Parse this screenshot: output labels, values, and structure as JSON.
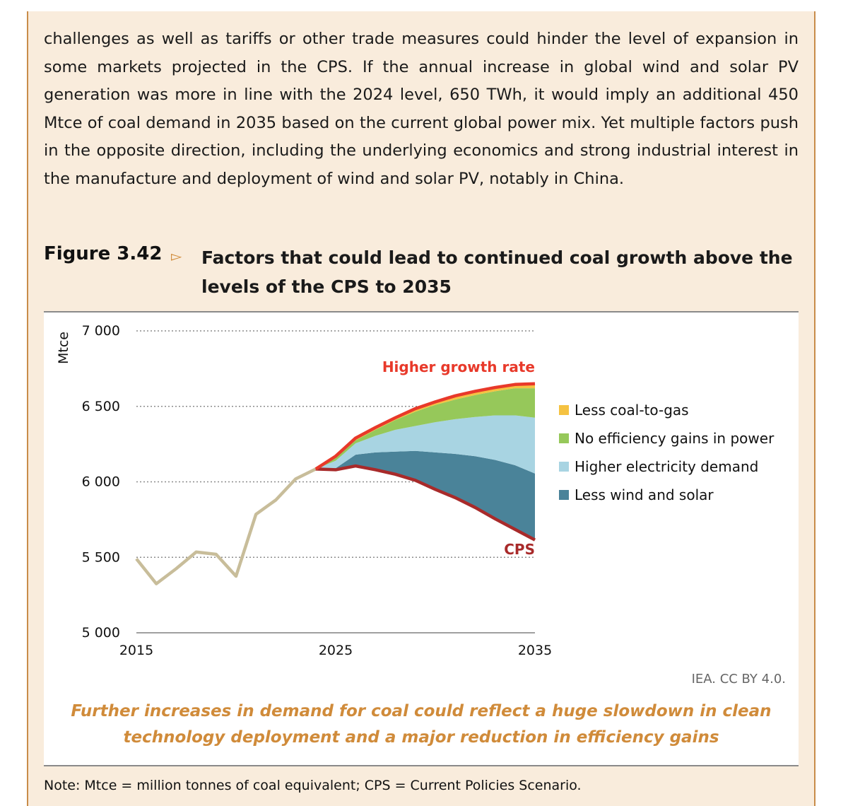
{
  "body_text": "challenges as well as tariffs or other trade measures could hinder the level of expansion in some markets projected in the CPS. If the annual increase in global wind and solar PV generation was more in line with the 2024 level, 650 TWh, it would imply an additional 450 Mtce of coal demand in 2035 based on the current global power mix. Yet multiple factors push in the opposite direction, including the underlying economics and strong industrial interest in the manufacture and deployment of wind and solar PV, notably in China.",
  "figure": {
    "number": "Figure 3.42",
    "arrow": "▻",
    "title": "Factors that could lead to continued coal growth above the levels of the CPS to 2035",
    "credit": "IEA. CC BY 4.0.",
    "caption": "Further increases in demand for coal could reflect a huge slowdown in clean technology deployment and a major reduction in efficiency gains",
    "note": "Note: Mtce = million tonnes of coal equivalent; CPS = Current Policies Scenario."
  },
  "colors": {
    "historical": "#c8bd9a",
    "cps": "#a82a2a",
    "higher_growth": "#e8392a",
    "less_wind_solar": "#4a8399",
    "higher_electricity": "#a8d4e2",
    "no_efficiency": "#96c85a",
    "less_coal_to_gas": "#f5c242",
    "gridline": "#8c8c8c",
    "axis": "#808080"
  },
  "chart_data": {
    "type": "area",
    "ylabel": "Mtce",
    "ylim": [
      5000,
      7000
    ],
    "yticks": [
      5000,
      5500,
      6000,
      6500,
      7000
    ],
    "ytick_labels": [
      "5 000",
      "5 500",
      "6 000",
      "6 500",
      "7 000"
    ],
    "xlim": [
      2015,
      2035
    ],
    "xticks": [
      2015,
      2025,
      2035
    ],
    "xtick_labels": [
      "2015",
      "2025",
      "2035"
    ],
    "grid": "horizontal dotted",
    "legend_position": "right",
    "historical": {
      "x": [
        2015,
        2016,
        2017,
        2018,
        2019,
        2020,
        2021,
        2022,
        2023,
        2024
      ],
      "y": [
        5490,
        5325,
        5425,
        5535,
        5520,
        5375,
        5785,
        5880,
        6020,
        6085
      ]
    },
    "projection_x": [
      2024,
      2025,
      2026,
      2027,
      2028,
      2029,
      2030,
      2031,
      2032,
      2033,
      2034,
      2035
    ],
    "cps": [
      6085,
      6080,
      6105,
      6080,
      6050,
      6010,
      5950,
      5895,
      5830,
      5755,
      5685,
      5615
    ],
    "stack_series": [
      {
        "name": "Less wind and solar",
        "key": "less_wind_solar",
        "cumulative": [
          6085,
          6090,
          6180,
          6195,
          6200,
          6205,
          6195,
          6185,
          6170,
          6145,
          6110,
          6055
        ]
      },
      {
        "name": "Higher electricity demand",
        "key": "higher_electricity",
        "cumulative": [
          6085,
          6140,
          6255,
          6305,
          6345,
          6370,
          6395,
          6415,
          6430,
          6440,
          6440,
          6425
        ]
      },
      {
        "name": "No efficiency gains in power",
        "key": "no_efficiency",
        "cumulative": [
          6085,
          6160,
          6275,
          6345,
          6410,
          6465,
          6510,
          6545,
          6575,
          6600,
          6620,
          6620
        ]
      },
      {
        "name": "Less coal-to-gas",
        "key": "less_coal_to_gas",
        "cumulative": [
          6085,
          6165,
          6285,
          6355,
          6420,
          6480,
          6525,
          6565,
          6595,
          6620,
          6640,
          6650
        ]
      }
    ],
    "higher_growth_rate": [
      6085,
      6170,
      6290,
      6360,
      6425,
      6485,
      6530,
      6570,
      6600,
      6625,
      6645,
      6650
    ],
    "legend": [
      "Less coal-to-gas",
      "No efficiency gains in power",
      "Higher electricity demand",
      "Less wind and solar"
    ],
    "annotations": {
      "higher_growth": "Higher growth rate",
      "cps": "CPS"
    }
  }
}
